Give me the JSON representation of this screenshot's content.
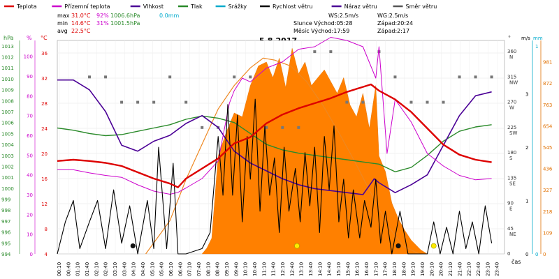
{
  "chart_data": {
    "type": "line",
    "title": "5.8.2017",
    "legend": {
      "placement": "top",
      "items": [
        {
          "key": "temp",
          "label": "Teplota",
          "color": "#dd0000"
        },
        {
          "key": "feels",
          "label": "Přízemní teplota",
          "color": "#cc00cc"
        },
        {
          "key": "humidity",
          "label": "Vlhkost",
          "color": "#4b0096"
        },
        {
          "key": "pressure",
          "label": "Tlak",
          "color": "#2a8a2a"
        },
        {
          "key": "precip",
          "label": "Srážky",
          "color": "#00aacc"
        },
        {
          "key": "wind",
          "label": "Rychlost větru",
          "color": "#000000"
        },
        {
          "key": "gust",
          "label": "Náraz větru",
          "color": "#4b0096"
        },
        {
          "key": "winddir",
          "label": "Směr větru",
          "color": "#555555"
        }
      ]
    },
    "stats": {
      "rows": [
        {
          "label": "max",
          "t": "31.0°C",
          "h": "92%",
          "p": "1006.6hPa",
          "r": "0.0mm"
        },
        {
          "label": "min",
          "t": "14.6°C",
          "h": "31%",
          "p": "1001.5hPa",
          "r": ""
        },
        {
          "label": "avg",
          "t": "22.5°C",
          "h": "",
          "p": "",
          "r": ""
        }
      ],
      "ws": "WS:2.5m/s",
      "wg": "WG:2.5m/s",
      "sun": "Slunce Východ:05:28",
      "sunset": "Západ:20:24",
      "moon": "Měsíc Východ:17:59",
      "moonset": "Západ:2:17"
    },
    "axes": {
      "hpa_label": "hPa",
      "pct_label": "%",
      "temp_label": "°C",
      "deg_label": "°",
      "ms_label": "m/s",
      "mm_label": "mm",
      "hpa_ticks": [
        "994",
        "995",
        "996",
        "997",
        "998",
        "999",
        "1000",
        "1001",
        "1002",
        "1003",
        "1004",
        "1005",
        "1006",
        "1007",
        "1008",
        "1009",
        "1010",
        "1011",
        "1012",
        "1013"
      ],
      "pct_ticks": [
        "0",
        "10",
        "20",
        "30",
        "40",
        "50",
        "60",
        "70",
        "80",
        "90",
        "100"
      ],
      "temp_ticks": [
        "4",
        "8",
        "12",
        "16",
        "20",
        "24",
        "28",
        "32",
        "36"
      ],
      "dir_ticks": [
        {
          "deg": "360",
          "dir": "N"
        },
        {
          "deg": "315",
          "dir": "NW"
        },
        {
          "deg": "270",
          "dir": "W"
        },
        {
          "deg": "225",
          "dir": "SW"
        },
        {
          "deg": "180",
          "dir": "S"
        },
        {
          "deg": "135",
          "dir": "SE"
        },
        {
          "deg": "90",
          "dir": "E"
        },
        {
          "deg": "45",
          "dir": "NE"
        },
        {
          "deg": "0",
          "dir": ""
        }
      ],
      "ms_ticks": [
        "0",
        "1",
        "2",
        "3"
      ],
      "mm_ticks": [
        "0",
        "1"
      ],
      "solar_ticks": [
        "0",
        "109",
        "218",
        "327",
        "436",
        "545",
        "654",
        "763",
        "872",
        "981"
      ],
      "x_label": "čas",
      "x_ticks": [
        "00:10",
        "00:40",
        "01:10",
        "01:40",
        "02:10",
        "02:40",
        "03:10",
        "03:40",
        "04:10",
        "04:40",
        "05:10",
        "05:40",
        "06:10",
        "06:40",
        "07:10",
        "07:40",
        "08:10",
        "08:40",
        "09:10",
        "09:40",
        "10:10",
        "10:40",
        "11:10",
        "11:40",
        "12:10",
        "12:40",
        "13:10",
        "13:40",
        "14:10",
        "14:40",
        "15:10",
        "15:40",
        "16:10",
        "16:40",
        "17:10",
        "17:40",
        "18:10",
        "18:40",
        "19:10",
        "19:40",
        "20:10",
        "20:40",
        "21:10",
        "21:40",
        "22:10",
        "22:40",
        "23:10",
        "23:40"
      ],
      "temp_range": [
        4,
        38
      ],
      "hum_range": [
        0,
        108
      ],
      "press_range": [
        994,
        1013.5
      ],
      "wind_range": [
        0,
        4
      ],
      "solar_range": [
        0,
        1090
      ]
    },
    "series": {
      "temp": [
        [
          0,
          18.8
        ],
        [
          1,
          19.0
        ],
        [
          2,
          18.8
        ],
        [
          3,
          18.5
        ],
        [
          4,
          18.0
        ],
        [
          5,
          17.0
        ],
        [
          6,
          16.0
        ],
        [
          7,
          15.2
        ],
        [
          7.5,
          14.6
        ],
        [
          8,
          16.0
        ],
        [
          9,
          17.6
        ],
        [
          10,
          19.2
        ],
        [
          11,
          21.6
        ],
        [
          12,
          22.6
        ],
        [
          13,
          24.8
        ],
        [
          14,
          26.2
        ],
        [
          15,
          27.2
        ],
        [
          16,
          28.0
        ],
        [
          17,
          28.8
        ],
        [
          18,
          29.8
        ],
        [
          19,
          30.6
        ],
        [
          19.5,
          31.0
        ],
        [
          20,
          30.0
        ],
        [
          21,
          28.6
        ],
        [
          22,
          26.6
        ],
        [
          23,
          24.0
        ],
        [
          24,
          21.4
        ],
        [
          25,
          19.8
        ],
        [
          26,
          19.0
        ],
        [
          27,
          18.6
        ]
      ],
      "feels": [
        [
          0,
          17.4
        ],
        [
          1,
          17.4
        ],
        [
          2,
          16.9
        ],
        [
          3,
          16.5
        ],
        [
          4,
          16.2
        ],
        [
          5,
          15.0
        ],
        [
          6,
          14.0
        ],
        [
          7,
          13.5
        ],
        [
          7.5,
          13.8
        ],
        [
          8,
          14.5
        ],
        [
          9,
          16.0
        ],
        [
          10,
          18.8
        ],
        [
          10.7,
          28.0
        ],
        [
          11,
          30.0
        ],
        [
          11.5,
          32.0
        ],
        [
          12,
          31.4
        ],
        [
          13,
          33.6
        ],
        [
          14,
          34.6
        ],
        [
          15,
          36.6
        ],
        [
          16,
          37.0
        ],
        [
          17,
          38.5
        ],
        [
          18,
          38.0
        ],
        [
          19,
          37.0
        ],
        [
          19.8,
          32.0
        ],
        [
          20,
          37.0
        ],
        [
          20.5,
          20.0
        ],
        [
          21,
          28.6
        ],
        [
          22,
          25.0
        ],
        [
          23,
          20.0
        ],
        [
          24,
          18.0
        ],
        [
          25,
          16.5
        ],
        [
          26,
          15.8
        ],
        [
          27,
          16.0
        ]
      ],
      "humidity": [
        [
          0,
          88
        ],
        [
          1,
          88
        ],
        [
          2,
          83
        ],
        [
          3,
          72
        ],
        [
          4,
          55
        ],
        [
          5,
          52
        ],
        [
          6,
          57
        ],
        [
          7,
          60
        ],
        [
          8,
          66
        ],
        [
          9,
          70
        ],
        [
          10,
          64
        ],
        [
          11,
          52
        ],
        [
          12,
          46
        ],
        [
          13,
          42
        ],
        [
          14,
          38
        ],
        [
          15,
          35
        ],
        [
          16,
          33
        ],
        [
          17,
          32
        ],
        [
          18,
          31
        ],
        [
          19,
          30
        ],
        [
          19.7,
          38
        ],
        [
          20,
          36
        ],
        [
          21,
          31
        ],
        [
          22,
          35
        ],
        [
          23,
          40
        ],
        [
          24,
          55
        ],
        [
          25,
          70
        ],
        [
          26,
          80
        ],
        [
          27,
          82
        ]
      ],
      "pressure": [
        [
          0,
          1005.5
        ],
        [
          1,
          1005.3
        ],
        [
          2,
          1005.0
        ],
        [
          3,
          1004.8
        ],
        [
          4,
          1004.9
        ],
        [
          5,
          1005.2
        ],
        [
          6,
          1005.5
        ],
        [
          7,
          1005.8
        ],
        [
          8,
          1006.3
        ],
        [
          9,
          1006.6
        ],
        [
          10,
          1006.4
        ],
        [
          11,
          1006.0
        ],
        [
          12,
          1005.0
        ],
        [
          13,
          1004.0
        ],
        [
          14,
          1003.5
        ],
        [
          15,
          1003.2
        ],
        [
          16,
          1003.0
        ],
        [
          17,
          1002.8
        ],
        [
          18,
          1002.6
        ],
        [
          19,
          1002.4
        ],
        [
          20,
          1002.2
        ],
        [
          21,
          1001.5
        ],
        [
          22,
          1001.9
        ],
        [
          23,
          1003.0
        ],
        [
          24,
          1004.3
        ],
        [
          25,
          1005.2
        ],
        [
          26,
          1005.6
        ],
        [
          27,
          1005.8
        ]
      ],
      "wind": [
        [
          0,
          0
        ],
        [
          0.5,
          0.6
        ],
        [
          1,
          1.0
        ],
        [
          1.4,
          0.1
        ],
        [
          2,
          0.6
        ],
        [
          2.5,
          1.0
        ],
        [
          3,
          0.1
        ],
        [
          3.5,
          1.2
        ],
        [
          4,
          0.2
        ],
        [
          4.5,
          0.9
        ],
        [
          5,
          0
        ],
        [
          5.6,
          1.0
        ],
        [
          6,
          0.1
        ],
        [
          6.3,
          2.0
        ],
        [
          6.8,
          0.1
        ],
        [
          7.2,
          1.7
        ],
        [
          7.5,
          0
        ],
        [
          8,
          0
        ],
        [
          9,
          0.1
        ],
        [
          9.5,
          0.4
        ],
        [
          10.0,
          2.2
        ],
        [
          10.3,
          1.1
        ],
        [
          10.6,
          2.8
        ],
        [
          10.9,
          1.1
        ],
        [
          11.2,
          2.6
        ],
        [
          11.5,
          0.6
        ],
        [
          11.8,
          2.2
        ],
        [
          12.0,
          1.4
        ],
        [
          12.3,
          2.9
        ],
        [
          12.6,
          0.8
        ],
        [
          12.9,
          2.4
        ],
        [
          13.2,
          1.1
        ],
        [
          13.5,
          1.8
        ],
        [
          13.8,
          0.4
        ],
        [
          14.1,
          2.0
        ],
        [
          14.4,
          0.8
        ],
        [
          14.8,
          1.6
        ],
        [
          15.1,
          0.6
        ],
        [
          15.4,
          1.9
        ],
        [
          15.7,
          0.9
        ],
        [
          16.0,
          2.0
        ],
        [
          16.3,
          0.4
        ],
        [
          16.6,
          2.2
        ],
        [
          16.9,
          1.2
        ],
        [
          17.2,
          2.4
        ],
        [
          17.5,
          0.6
        ],
        [
          17.8,
          1.4
        ],
        [
          18.1,
          0.3
        ],
        [
          18.4,
          1.2
        ],
        [
          18.8,
          0.3
        ],
        [
          19.1,
          1.0
        ],
        [
          19.5,
          0.5
        ],
        [
          19.8,
          1.4
        ],
        [
          20.1,
          0.2
        ],
        [
          20.4,
          0.8
        ],
        [
          20.8,
          0
        ],
        [
          21.3,
          0.8
        ],
        [
          21.8,
          0
        ],
        [
          22.4,
          0
        ],
        [
          23,
          0
        ],
        [
          23.4,
          0.6
        ],
        [
          23.8,
          0
        ],
        [
          24.2,
          0.5
        ],
        [
          24.6,
          0
        ],
        [
          25.0,
          0.8
        ],
        [
          25.4,
          0.1
        ],
        [
          25.8,
          0.6
        ],
        [
          26.2,
          0
        ],
        [
          26.6,
          0.9
        ],
        [
          27,
          0.2
        ]
      ],
      "solar": [
        [
          9,
          0
        ],
        [
          9.3,
          30
        ],
        [
          9.6,
          80
        ],
        [
          10,
          500
        ],
        [
          10.5,
          620
        ],
        [
          11,
          720
        ],
        [
          11.5,
          700
        ],
        [
          12,
          860
        ],
        [
          12.5,
          960
        ],
        [
          13,
          980
        ],
        [
          13.4,
          900
        ],
        [
          13.8,
          1000
        ],
        [
          14.2,
          850
        ],
        [
          14.6,
          1050
        ],
        [
          15,
          920
        ],
        [
          15.4,
          980
        ],
        [
          15.8,
          860
        ],
        [
          16.2,
          900
        ],
        [
          16.6,
          940
        ],
        [
          17,
          880
        ],
        [
          17.4,
          820
        ],
        [
          17.8,
          900
        ],
        [
          18.2,
          760
        ],
        [
          18.6,
          700
        ],
        [
          19,
          820
        ],
        [
          19.4,
          640
        ],
        [
          19.8,
          860
        ],
        [
          20,
          500
        ],
        [
          20.4,
          420
        ],
        [
          20.8,
          260
        ],
        [
          21.2,
          180
        ],
        [
          21.6,
          120
        ],
        [
          22,
          70
        ],
        [
          22.6,
          20
        ],
        [
          23,
          0
        ]
      ],
      "solar_theory": [
        [
          5.5,
          0
        ],
        [
          7,
          170
        ],
        [
          8,
          380
        ],
        [
          9,
          560
        ],
        [
          10,
          740
        ],
        [
          11,
          860
        ],
        [
          12,
          950
        ],
        [
          12.8,
          1000
        ],
        [
          13.5,
          990
        ],
        [
          14.5,
          960
        ],
        [
          15.5,
          880
        ],
        [
          16.5,
          760
        ],
        [
          17.5,
          620
        ],
        [
          18.5,
          470
        ],
        [
          19.5,
          310
        ],
        [
          20.5,
          150
        ],
        [
          21.5,
          40
        ],
        [
          22.5,
          0
        ]
      ],
      "winddir": [
        [
          2,
          315
        ],
        [
          3,
          315
        ],
        [
          4,
          270
        ],
        [
          5,
          270
        ],
        [
          6,
          270
        ],
        [
          7,
          315
        ],
        [
          8,
          270
        ],
        [
          9,
          225
        ],
        [
          10,
          225
        ],
        [
          11,
          315
        ],
        [
          12,
          315
        ],
        [
          13,
          225
        ],
        [
          14,
          225
        ],
        [
          15,
          225
        ],
        [
          16,
          360
        ],
        [
          17,
          360
        ],
        [
          18,
          270
        ],
        [
          19,
          270
        ],
        [
          20,
          360
        ],
        [
          21,
          315
        ],
        [
          22,
          270
        ],
        [
          23,
          270
        ],
        [
          24,
          270
        ],
        [
          25,
          315
        ],
        [
          26,
          315
        ],
        [
          27,
          315
        ]
      ]
    },
    "markers": [
      {
        "x": 4.7,
        "y": 0.15,
        "type": "dot",
        "color": "#111111"
      },
      {
        "x": 14.9,
        "y": 0.15,
        "type": "sun",
        "color": "#ffea00"
      },
      {
        "x": 21.2,
        "y": 0.15,
        "type": "dot",
        "color": "#111111"
      },
      {
        "x": 23.4,
        "y": 0.15,
        "type": "sun",
        "color": "#ffea00"
      }
    ]
  }
}
